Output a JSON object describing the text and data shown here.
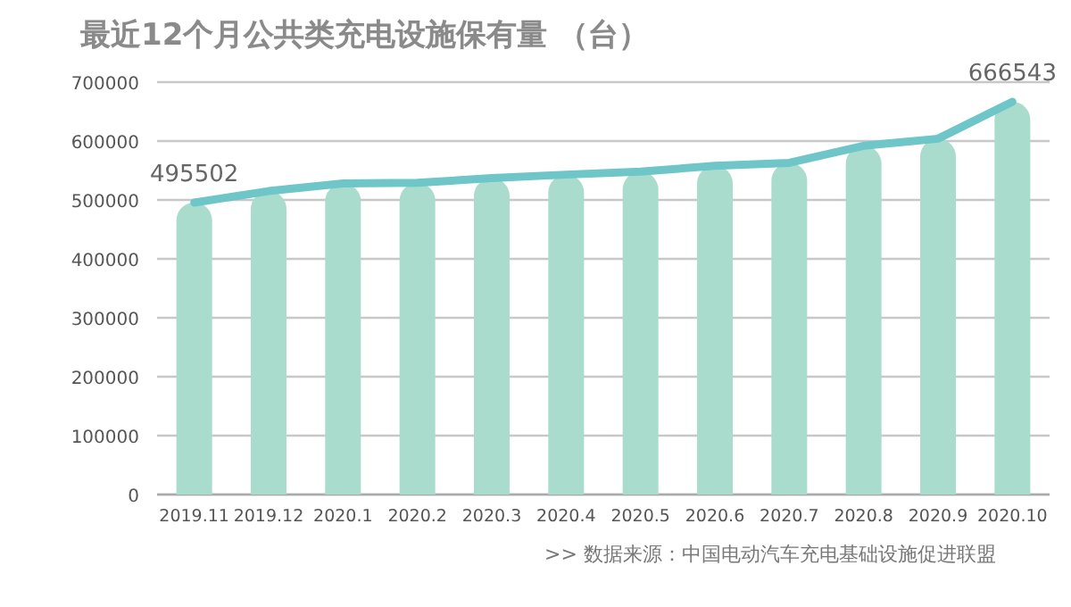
{
  "chart_data": {
    "type": "bar",
    "title": "最近12个月公共类充电设施保有量 （台）",
    "categories": [
      "2019.11",
      "2019.12",
      "2020.1",
      "2020.2",
      "2020.3",
      "2020.4",
      "2020.5",
      "2020.6",
      "2020.7",
      "2020.8",
      "2020.9",
      "2020.10"
    ],
    "series": [
      {
        "color": "#a9dccd",
        "values": [
          495502,
          515000,
          528000,
          529000,
          537000,
          543000,
          548000,
          558000,
          563000,
          592000,
          604000,
          666543
        ]
      },
      {
        "type": "line",
        "color": "#6ec6c8",
        "values": [
          495502,
          515000,
          528000,
          529000,
          537000,
          543000,
          548000,
          558000,
          563000,
          592000,
          604000,
          666543
        ],
        "value_labels": [
          "495502",
          null,
          null,
          null,
          null,
          null,
          null,
          null,
          null,
          null,
          null,
          "666543"
        ]
      }
    ],
    "ylim": [
      0,
      700000
    ],
    "yticks": [
      0,
      100000,
      200000,
      300000,
      400000,
      500000,
      600000,
      700000
    ],
    "grid": "y",
    "marker": "none",
    "line_style": "solid",
    "annotations": [
      ">>  数据来源：中国电动汽车充电基础设施促进联盟"
    ]
  }
}
